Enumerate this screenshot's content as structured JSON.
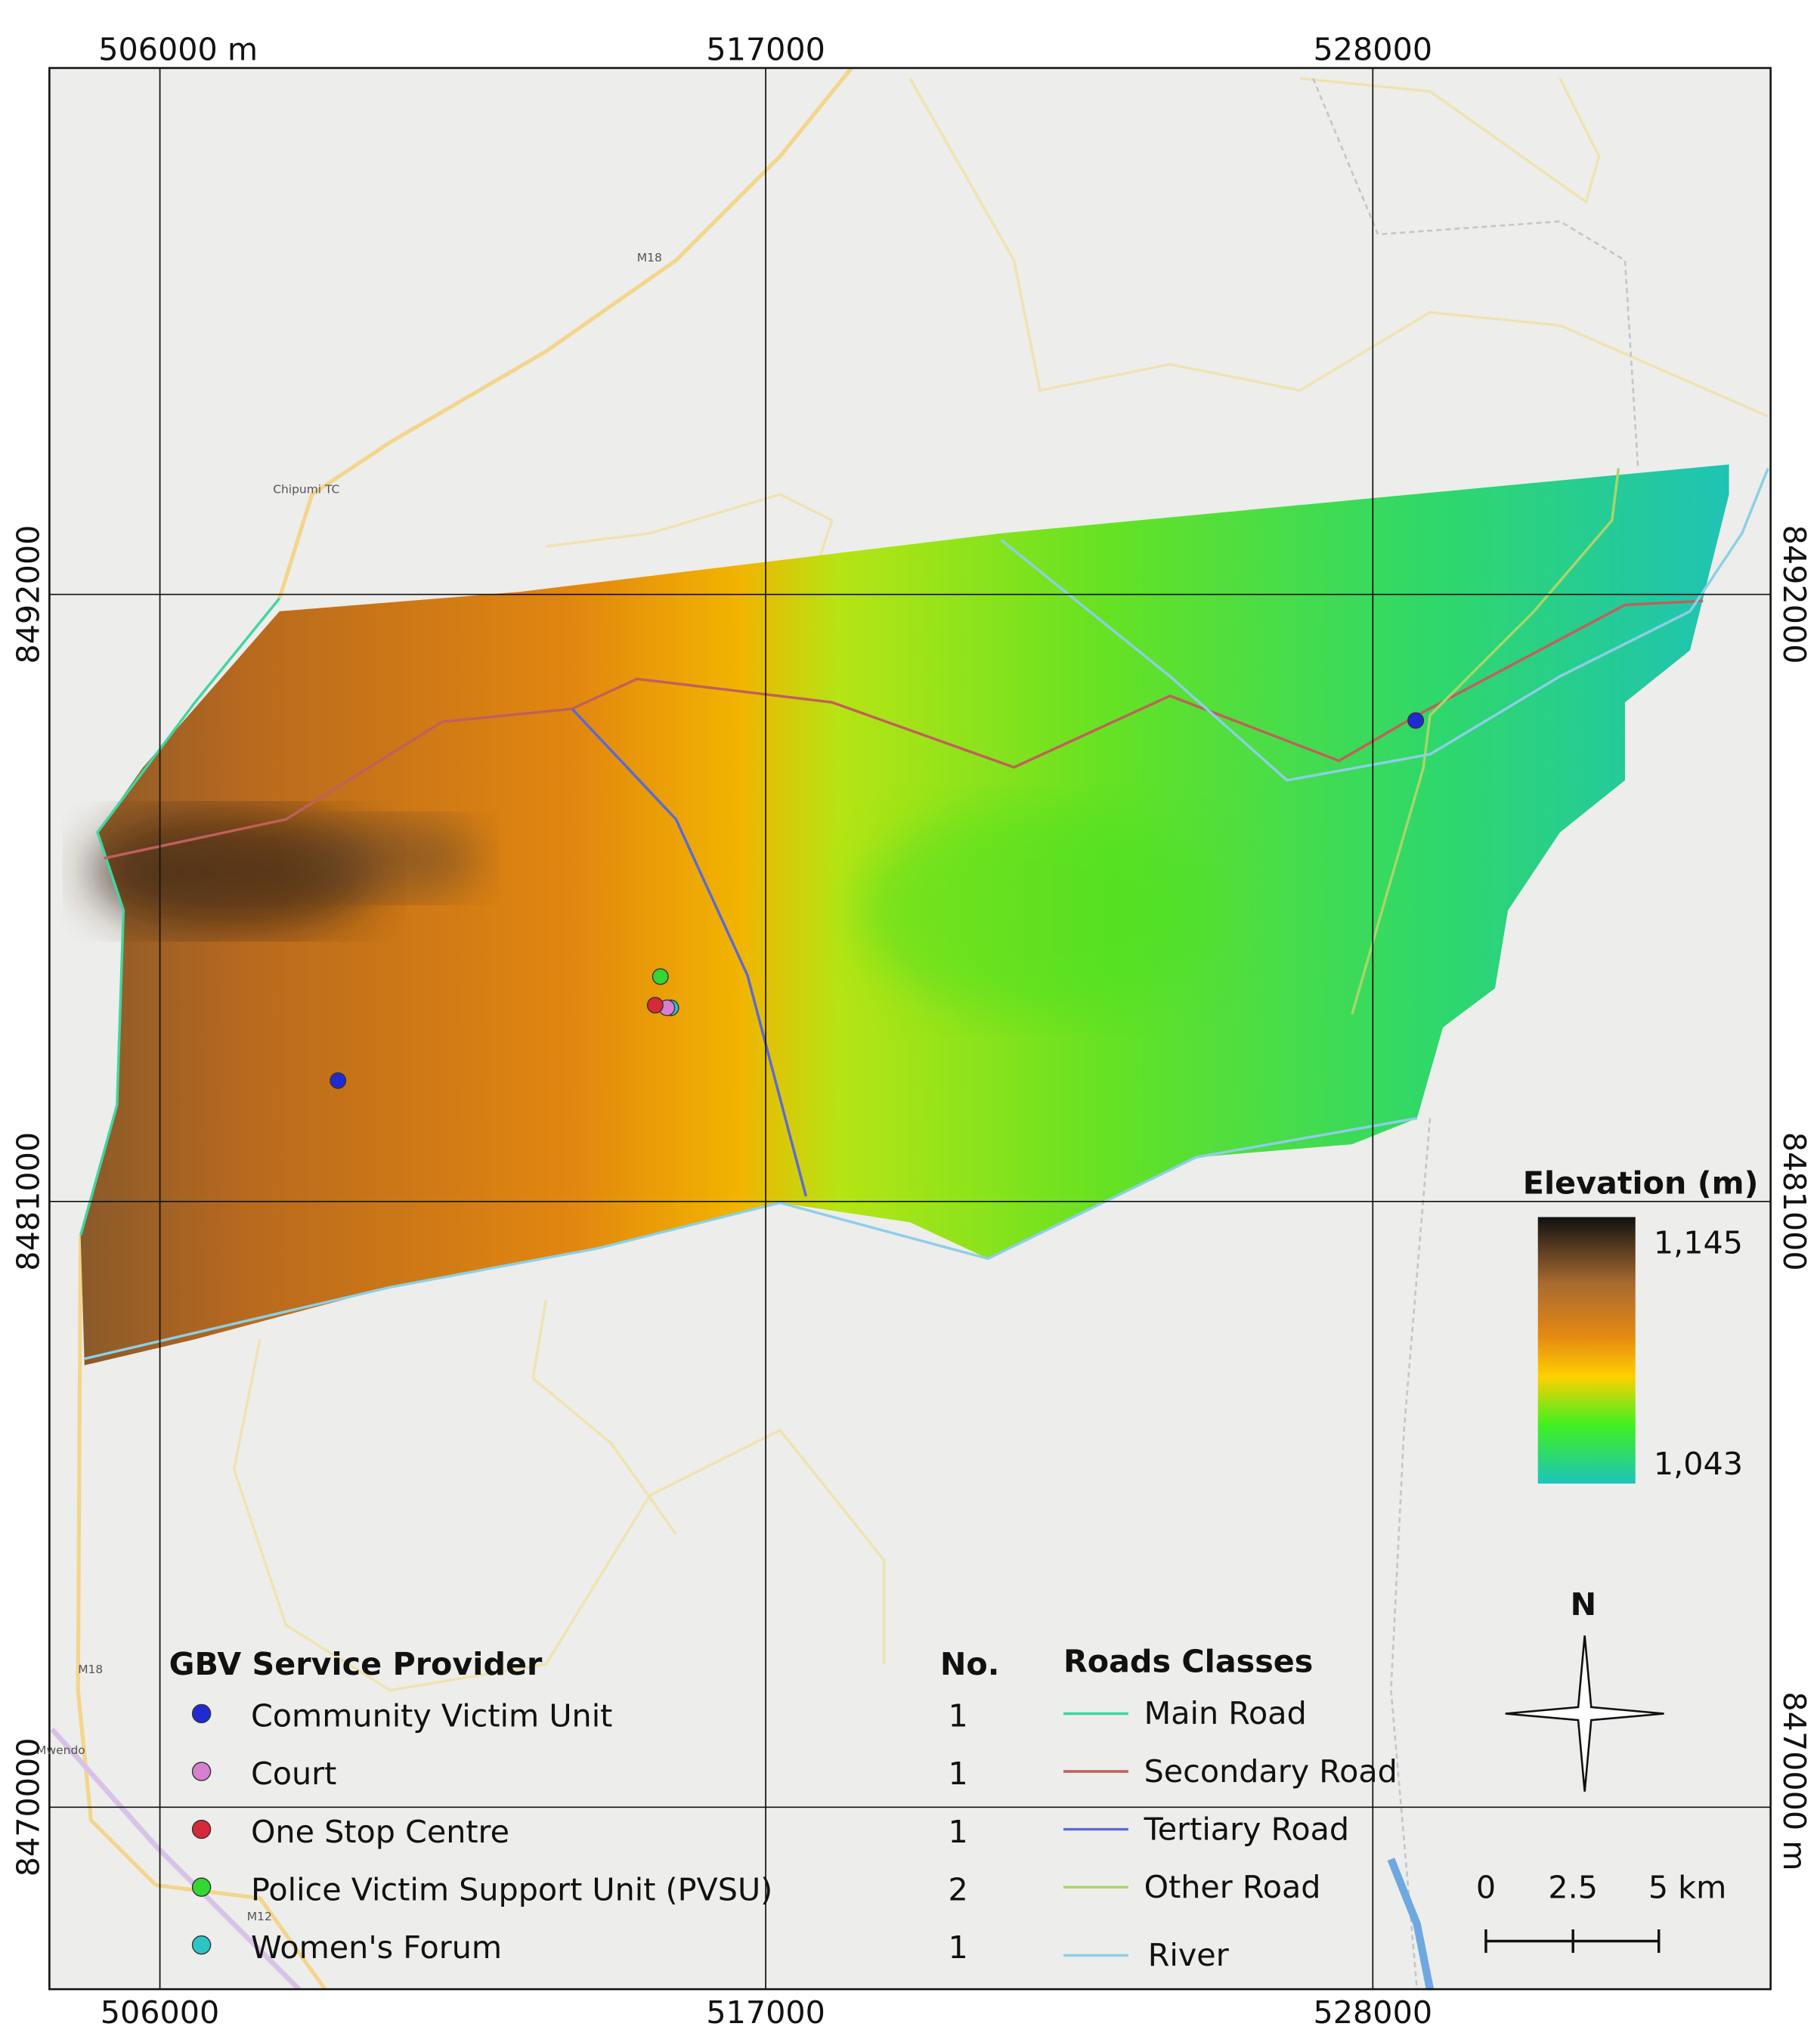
{
  "grid_labels": {
    "top": [
      "506000 m",
      "517000",
      "528000"
    ],
    "bottom": [
      "506000",
      "517000",
      "528000"
    ],
    "left": [
      "8492000",
      "8481000",
      "8470000"
    ],
    "right": [
      "8492000",
      "8481000",
      "8470000 m"
    ]
  },
  "place_labels": [
    "Chipumi TC",
    "M18",
    "M18",
    "M12",
    "Mwendo"
  ],
  "service_legend": {
    "title": "GBV Service Provider",
    "count_header": "No.",
    "items": [
      {
        "name": "Community Victim Unit",
        "count": 1,
        "color": "#1f2bd1"
      },
      {
        "name": "Court",
        "count": 1,
        "color": "#d77fd0"
      },
      {
        "name": "One Stop Centre",
        "count": 1,
        "color": "#d42a3a"
      },
      {
        "name": "Police Victim Support Unit (PVSU)",
        "count": 2,
        "color": "#33d633"
      },
      {
        "name": "Women's Forum",
        "count": 1,
        "color": "#2cc4c4"
      }
    ]
  },
  "roads_legend": {
    "title": "Roads Classes",
    "items": [
      {
        "name": "Main Road",
        "color": "#3fd6a0"
      },
      {
        "name": "Secondary Road",
        "color": "#c0605a"
      },
      {
        "name": "Tertiary Road",
        "color": "#5a6ad6"
      },
      {
        "name": "Other Road",
        "color": "#a8d66a"
      },
      {
        "name": "River",
        "color": "#8ccfe6"
      }
    ]
  },
  "elevation_legend": {
    "title": "Elevation (m)",
    "max_label": "1,145",
    "min_label": "1,043"
  },
  "north": "N",
  "scale_bar": [
    "0",
    "2.5",
    "5 km"
  ]
}
